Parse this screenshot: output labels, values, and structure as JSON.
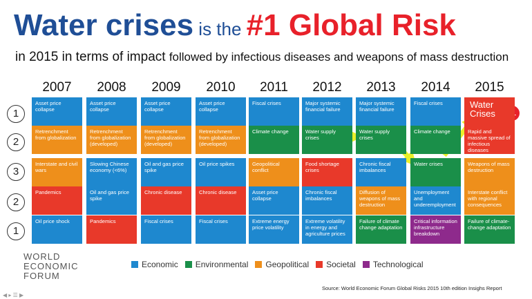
{
  "title": {
    "part1": "Water crises",
    "part2": " is the ",
    "part3": "#1 Global Risk"
  },
  "subtitle": {
    "part1": "in 2015 in terms of impact ",
    "part2": "followed by infectious diseases and weapons of mass destruction"
  },
  "years": [
    "2007",
    "2008",
    "2009",
    "2010",
    "2011",
    "2012",
    "2013",
    "2014",
    "2015"
  ],
  "ranks": [
    "1",
    "2",
    "3",
    "2",
    "1"
  ],
  "colors": {
    "economic": "#1e88cf",
    "environmental": "#1a8f49",
    "geopolitical": "#ee8f1b",
    "societal": "#e8392a",
    "technological": "#8e2a8c",
    "arrow": "#eaf02a"
  },
  "grid": [
    [
      {
        "text": "Asset price collapse",
        "cat": "economic"
      },
      {
        "text": "Asset price collapse",
        "cat": "economic"
      },
      {
        "text": "Asset price collapse",
        "cat": "economic"
      },
      {
        "text": "Asset price collapse",
        "cat": "economic"
      },
      {
        "text": "Fiscal crises",
        "cat": "economic"
      },
      {
        "text": "Major systemic financial failure",
        "cat": "economic"
      },
      {
        "text": "Major systemic financial failure",
        "cat": "economic"
      },
      {
        "text": "Fiscal crises",
        "cat": "economic"
      },
      {
        "text": "Water Crises",
        "cat": "societal",
        "special": true
      }
    ],
    [
      {
        "text": "Retrenchment from globalization",
        "cat": "geopolitical"
      },
      {
        "text": "Retrenchment from globalization (developed)",
        "cat": "geopolitical"
      },
      {
        "text": "Retrenchment from globalization (developed)",
        "cat": "geopolitical"
      },
      {
        "text": "Retrenchment from globalization (developed)",
        "cat": "geopolitical"
      },
      {
        "text": "Climate change",
        "cat": "environmental"
      },
      {
        "text": "Water supply crises",
        "cat": "environmental"
      },
      {
        "text": "Water supply crises",
        "cat": "environmental"
      },
      {
        "text": "Climate change",
        "cat": "environmental"
      },
      {
        "text": "Rapid and massive spread of infectious diseases",
        "cat": "societal"
      }
    ],
    [
      {
        "text": "Interstate and civil wars",
        "cat": "geopolitical"
      },
      {
        "text": "Slowing Chinese economy (<6%)",
        "cat": "economic"
      },
      {
        "text": "Oil and gas price spike",
        "cat": "economic"
      },
      {
        "text": "Oil price spikes",
        "cat": "economic"
      },
      {
        "text": "Geopolitical conflict",
        "cat": "geopolitical"
      },
      {
        "text": "Food shortage crises",
        "cat": "societal"
      },
      {
        "text": "Chronic fiscal imbalances",
        "cat": "economic"
      },
      {
        "text": "Water crises",
        "cat": "environmental"
      },
      {
        "text": "Weapons of mass destruction",
        "cat": "geopolitical"
      }
    ],
    [
      {
        "text": "Pandemics",
        "cat": "societal"
      },
      {
        "text": "Oil and gas price spike",
        "cat": "economic"
      },
      {
        "text": "Chronic disease",
        "cat": "societal"
      },
      {
        "text": "Chronic disease",
        "cat": "societal"
      },
      {
        "text": "Asset price collapse",
        "cat": "economic"
      },
      {
        "text": "Chronic fiscal imbalances",
        "cat": "economic"
      },
      {
        "text": "Diffusion of weapons of mass destruction",
        "cat": "geopolitical"
      },
      {
        "text": "Unemployment and underemployment",
        "cat": "economic"
      },
      {
        "text": "Interstate conflict with regional consequences",
        "cat": "geopolitical"
      }
    ],
    [
      {
        "text": "Oil price shock",
        "cat": "economic"
      },
      {
        "text": "Pandemics",
        "cat": "societal"
      },
      {
        "text": "Fiscal crises",
        "cat": "economic"
      },
      {
        "text": "Fiscal crises",
        "cat": "economic"
      },
      {
        "text": "Extreme energy price volatility",
        "cat": "economic"
      },
      {
        "text": "Extreme volatility in energy and agriculture prices",
        "cat": "economic"
      },
      {
        "text": "Failure of climate change adaptation",
        "cat": "environmental"
      },
      {
        "text": "Critical information infrastructure breakdown",
        "cat": "technological"
      },
      {
        "text": "Failure of climate-change adaptation",
        "cat": "environmental"
      }
    ]
  ],
  "badge": "#1",
  "legend": [
    {
      "label": "Economic",
      "cat": "economic"
    },
    {
      "label": "Environmental",
      "cat": "environmental"
    },
    {
      "label": "Geopolitical",
      "cat": "geopolitical"
    },
    {
      "label": "Societal",
      "cat": "societal"
    },
    {
      "label": "Technological",
      "cat": "technological"
    }
  ],
  "logo": [
    "WORLD",
    "ECONOMIC",
    "FORUM"
  ],
  "source": "Source: World Economic Forum Global Risks 2015 10th edition Insighs Report"
}
